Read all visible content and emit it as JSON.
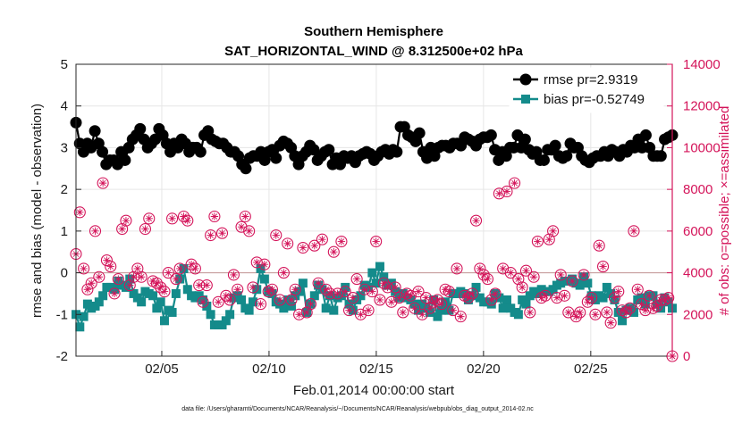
{
  "chart_data": {
    "type": "line",
    "title": "Southern Hemisphere",
    "subtitle": "SAT_HORIZONTAL_WIND @ 8.312500e+02 hPa",
    "xlabel": "Feb.01,2014 00:00:00 start",
    "ylabel_left": "rmse and bias (model - observation)",
    "ylabel_right": "# of obs: o=possible; ×=assimilated",
    "footnote": "data file: /Users/gharamti/Documents/NCAR/Reanalysis/~/Documents/NCAR/Reanalysis/webpub/obs_diag_output_2014-02.nc",
    "xlim": [
      1,
      28.8
    ],
    "ylim_left": [
      -2,
      5
    ],
    "ylim_right": [
      0,
      14000
    ],
    "x_ticks": [
      5,
      10,
      15,
      20,
      25
    ],
    "x_tick_labels": [
      "02/05",
      "02/10",
      "02/15",
      "02/20",
      "02/25"
    ],
    "y_ticks_left": [
      -2,
      -1,
      0,
      1,
      2,
      3,
      4,
      5
    ],
    "y_tick_labels_left": [
      "-2",
      "-1",
      "0",
      "1",
      "2",
      "3",
      "4",
      "5"
    ],
    "y_ticks_right": [
      0,
      2000,
      4000,
      6000,
      8000,
      10000,
      12000,
      14000
    ],
    "y_tick_labels_right": [
      "0",
      "2000",
      "4000",
      "6000",
      "8000",
      "10000",
      "12000",
      "14000"
    ],
    "grid": true,
    "legend_position": "top-right",
    "colors": {
      "rmse": "#000000",
      "bias": "#148b8b",
      "obs": "#d4145a",
      "zero_line": "#c8a0a0",
      "grid": "#e6e6e6"
    },
    "series": [
      {
        "name": "rmse pr=2.9319",
        "axis": "left",
        "marker": "circle",
        "values": [
          3.6,
          3.1,
          2.9,
          3.1,
          3.0,
          3.4,
          3.1,
          2.9,
          2.6,
          2.7,
          2.7,
          2.6,
          2.9,
          2.7,
          3.0,
          3.2,
          3.3,
          3.45,
          3.2,
          3.0,
          3.1,
          3.2,
          3.45,
          3.3,
          3.1,
          2.9,
          3.1,
          3.0,
          3.2,
          3.1,
          2.9,
          3.0,
          3.0,
          2.9,
          3.3,
          3.4,
          3.2,
          3.15,
          3.1,
          3.1,
          3.0,
          2.9,
          2.9,
          2.8,
          2.6,
          2.5,
          2.75,
          2.8,
          2.8,
          2.9,
          2.7,
          2.9,
          2.95,
          2.75,
          3.05,
          3.15,
          3.1,
          3.0,
          2.8,
          2.6,
          2.8,
          2.9,
          3.05,
          2.95,
          2.7,
          2.8,
          2.9,
          2.95,
          2.6,
          2.75,
          2.6,
          2.8,
          2.75,
          2.8,
          2.65,
          2.8,
          2.85,
          2.9,
          2.85,
          2.7,
          2.8,
          2.9,
          2.95,
          2.85,
          2.95,
          2.9,
          3.5,
          3.5,
          3.3,
          3.25,
          3.15,
          3.35,
          2.9,
          2.75,
          3.0,
          2.8,
          3.0,
          3.05,
          3.05,
          3.0,
          3.1,
          3.1,
          3.05,
          3.25,
          3.2,
          3.15,
          3.05,
          3.2,
          3.25,
          3.25,
          3.3,
          2.95,
          2.7,
          2.9,
          2.8,
          3.0,
          3.0,
          3.3,
          3.0,
          3.2,
          2.95,
          2.85,
          2.9,
          2.7,
          2.7,
          2.95,
          2.95,
          3.05,
          2.8,
          2.75,
          2.8,
          3.1,
          3.0,
          3.0,
          2.8,
          2.7,
          2.65,
          2.75,
          2.8,
          2.8,
          2.9,
          2.8,
          2.95,
          2.9,
          2.8,
          2.95,
          2.9,
          3.05,
          3.0,
          3.2,
          3.0,
          3.3,
          3.0,
          2.8,
          2.8,
          2.8,
          3.2,
          3.25,
          3.3
        ]
      },
      {
        "name": "bias pr=-0.52749",
        "axis": "left",
        "marker": "square",
        "values": [
          -1.0,
          -1.3,
          -1.05,
          -0.75,
          -0.85,
          -0.8,
          -0.7,
          -0.55,
          -0.35,
          -0.35,
          -0.4,
          -0.2,
          -0.3,
          -0.35,
          -0.15,
          -0.5,
          -0.6,
          -0.7,
          -0.45,
          -0.5,
          -0.55,
          -0.85,
          -0.7,
          -1.15,
          -0.9,
          -0.95,
          -0.5,
          -0.15,
          0.1,
          -0.4,
          -0.55,
          -0.6,
          -0.55,
          -0.65,
          -0.8,
          -1.0,
          -1.25,
          -1.25,
          -1.25,
          -1.15,
          -1.0,
          -0.6,
          -0.55,
          -0.65,
          -0.85,
          -0.9,
          -0.7,
          -0.4,
          0.1,
          -0.15,
          -0.45,
          -0.5,
          -0.7,
          -0.75,
          -0.85,
          -0.65,
          -0.8,
          -0.55,
          -0.45,
          -0.25,
          -0.95,
          -0.75,
          -0.55,
          -0.3,
          -0.4,
          -0.85,
          -0.55,
          -0.9,
          -0.6,
          -0.55,
          -0.35,
          -0.75,
          -0.9,
          -0.65,
          -0.55,
          -0.3,
          -0.35,
          0.0,
          -0.25,
          0.15,
          -0.1,
          -0.3,
          -0.25,
          -0.45,
          -0.6,
          -0.5,
          -0.6,
          -0.65,
          -0.75,
          -0.9,
          -0.75,
          -0.85,
          -0.95,
          -0.65,
          -1.05,
          -0.9,
          -0.7,
          -0.9,
          -0.5,
          -0.5,
          -0.45,
          -0.5,
          -0.65,
          -0.55,
          -0.35,
          -0.6,
          -0.7,
          -0.7,
          -0.75,
          -0.5,
          -0.6,
          -0.85,
          -0.65,
          -0.85,
          -0.95,
          -1.0,
          -0.65,
          -0.75,
          -0.55,
          -0.45,
          -0.5,
          -0.4,
          -0.45,
          -0.45,
          -0.4,
          -0.3,
          -0.25,
          -0.2,
          -0.2,
          -0.15,
          -0.25,
          -0.3,
          -0.1,
          -0.25,
          -0.55,
          -0.65,
          -0.55,
          -0.6,
          -0.35,
          -0.5,
          -0.65,
          -0.95,
          -1.15,
          -0.9,
          -0.85,
          -0.95,
          -0.65,
          -0.6,
          -0.75,
          -0.55,
          -0.55,
          -0.75,
          -0.85,
          -0.6,
          -0.7,
          -0.85
        ]
      },
      {
        "name": "possible",
        "axis": "right",
        "marker": "circle-open",
        "values": [
          4900,
          6900,
          4200,
          3200,
          3500,
          6000,
          3800,
          8300,
          4600,
          4300,
          3000,
          3700,
          6100,
          6500,
          3400,
          3800,
          4200,
          3800,
          6100,
          6600,
          3600,
          3500,
          3300,
          3100,
          4000,
          6600,
          3700,
          4200,
          6700,
          6500,
          4400,
          4200,
          3400,
          2600,
          3400,
          5800,
          6700,
          2600,
          5900,
          2900,
          2700,
          3900,
          3200,
          6200,
          6700,
          6000,
          3300,
          4500,
          2500,
          4400,
          3100,
          3200,
          5800,
          2700,
          4000,
          5400,
          2700,
          3200,
          2000,
          5200,
          2100,
          2500,
          5300,
          3500,
          5600,
          3200,
          3000,
          5000,
          3000,
          5500,
          3100,
          2200,
          2800,
          3700,
          2000,
          3200,
          2200,
          3100,
          5500,
          2700,
          3500,
          3300,
          2600,
          3300,
          2800,
          2100,
          3000,
          2900,
          2300,
          3100,
          2000,
          2800,
          2300,
          2600,
          2700,
          2500,
          3200,
          3100,
          2200,
          4200,
          1900,
          2900,
          2800,
          3000,
          6500,
          4200,
          3900,
          3700,
          2700,
          3000,
          7800,
          4200,
          7900,
          4000,
          8300,
          3700,
          3300,
          4100,
          2100,
          3800,
          5500,
          2800,
          2900,
          5600,
          6000,
          2800,
          3900,
          2900,
          2100,
          3600,
          1900,
          2100,
          3900,
          2600,
          2800,
          2000,
          5300,
          4300,
          2100,
          1600,
          2800,
          3100,
          2200,
          2100,
          2300,
          6000,
          3200,
          2500,
          2200,
          2900,
          2300,
          2400,
          2700,
          2700,
          2800,
          0
        ]
      },
      {
        "name": "assimilated",
        "axis": "right",
        "marker": "asterisk",
        "values": [
          4900,
          6900,
          4200,
          3200,
          3500,
          6000,
          3800,
          8300,
          4600,
          4300,
          3000,
          3700,
          6100,
          6500,
          3400,
          3800,
          4200,
          3800,
          6100,
          6600,
          3600,
          3500,
          3300,
          3100,
          4000,
          6600,
          3700,
          4200,
          6700,
          6500,
          4400,
          4200,
          3400,
          2600,
          3400,
          5800,
          6700,
          2600,
          5900,
          2900,
          2700,
          3900,
          3200,
          6200,
          6700,
          6000,
          3300,
          4500,
          2500,
          4400,
          3100,
          3200,
          5800,
          2700,
          4000,
          5400,
          2700,
          3200,
          2000,
          5200,
          2100,
          2500,
          5300,
          3500,
          5600,
          3200,
          3000,
          5000,
          3000,
          5500,
          3100,
          2200,
          2800,
          3700,
          2000,
          3200,
          2200,
          3100,
          5500,
          2700,
          3500,
          3300,
          2600,
          3300,
          2800,
          2100,
          3000,
          2900,
          2300,
          3100,
          2000,
          2800,
          2300,
          2600,
          2700,
          2500,
          3200,
          3100,
          2200,
          4200,
          1900,
          2900,
          2800,
          3000,
          6500,
          4200,
          3900,
          3700,
          2700,
          3000,
          7800,
          4200,
          7900,
          4000,
          8300,
          3700,
          3300,
          4100,
          2100,
          3800,
          5500,
          2800,
          2900,
          5600,
          6000,
          2800,
          3900,
          2900,
          2100,
          3600,
          1900,
          2100,
          3900,
          2600,
          2800,
          2000,
          5300,
          4300,
          2100,
          1600,
          2800,
          3100,
          2200,
          2100,
          2300,
          6000,
          3200,
          2500,
          2200,
          2900,
          2300,
          2400,
          2700,
          2700,
          2800,
          0
        ]
      }
    ]
  }
}
